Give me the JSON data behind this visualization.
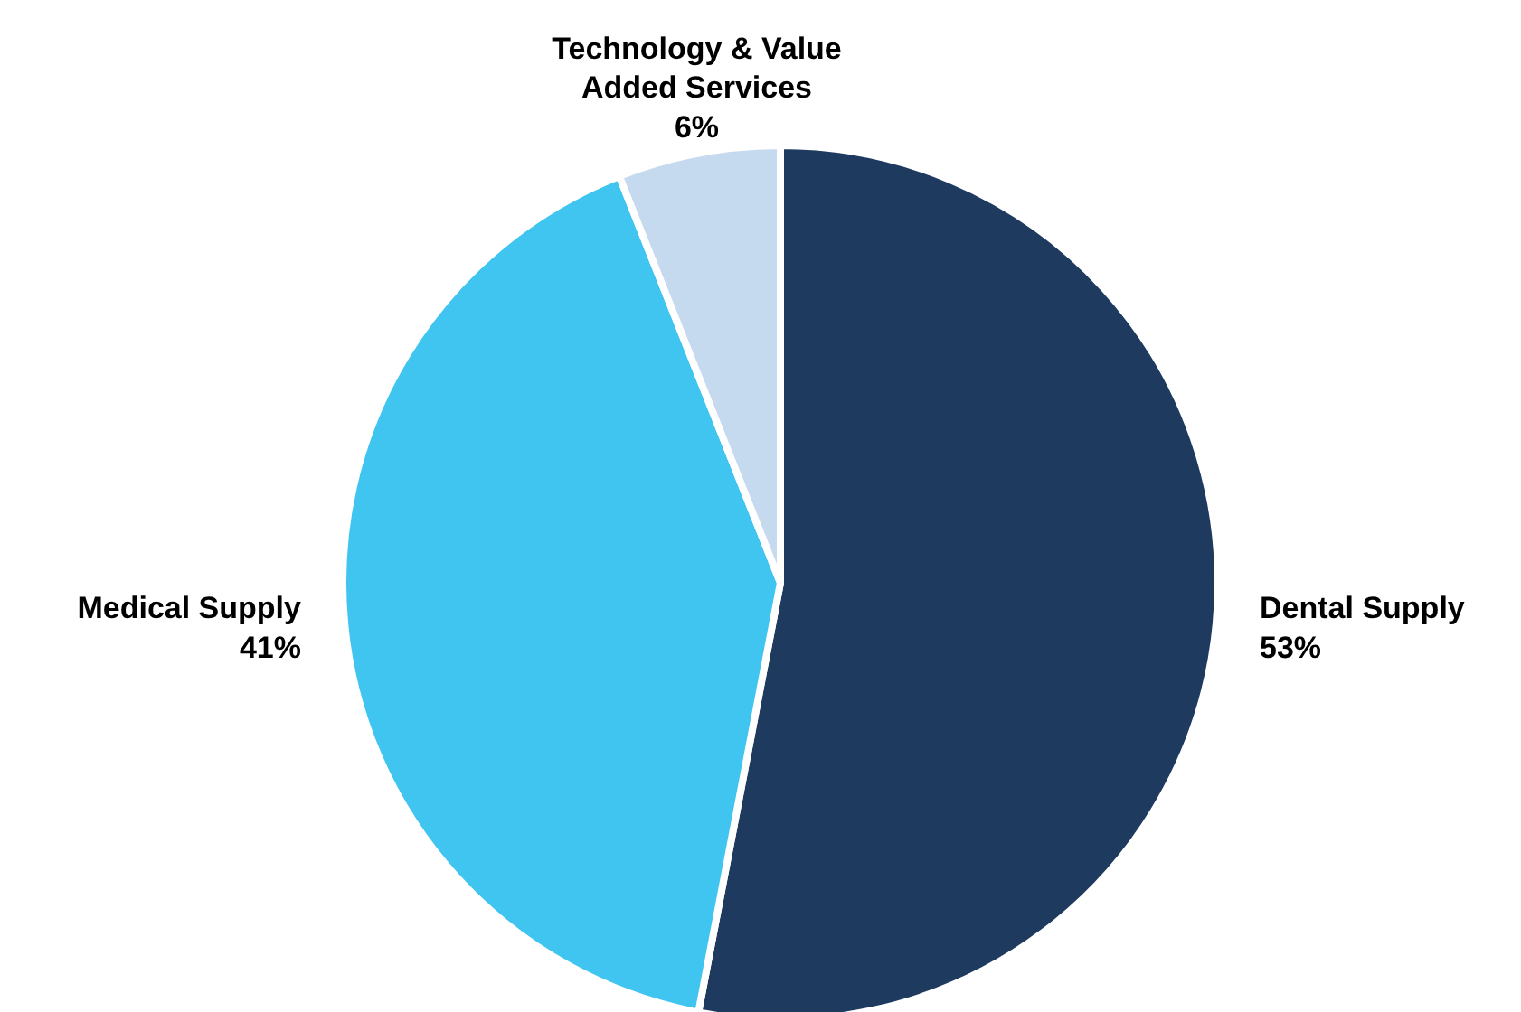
{
  "chart_data": {
    "type": "pie",
    "categories": [
      "Dental Supply",
      "Medical Supply",
      "Technology & Value Added Services"
    ],
    "values": [
      53,
      41,
      6
    ],
    "colors": [
      "#1f3a5f",
      "#40c4f0",
      "#c5d9ef"
    ],
    "value_labels": [
      "53%",
      "41%",
      "6%"
    ]
  }
}
